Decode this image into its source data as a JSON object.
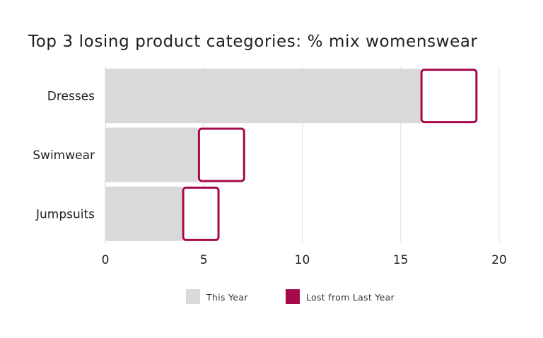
{
  "chart_data": {
    "type": "bar",
    "orientation": "horizontal",
    "stacked": true,
    "title": "Top 3 losing product categories: % mix womenswear",
    "categories": [
      "Dresses",
      "Swimwear",
      "Jumpsuits"
    ],
    "series": [
      {
        "name": "This Year",
        "values": [
          16,
          4.7,
          3.9
        ],
        "color": "#d9d9d9"
      },
      {
        "name": "Lost from Last Year",
        "values": [
          2.9,
          2.4,
          1.9
        ],
        "color": "#a6094a"
      }
    ],
    "xlim": [
      0,
      20
    ],
    "xticks": [
      "0",
      "5",
      "10",
      "15",
      "20"
    ],
    "xlabel": "",
    "ylabel": "",
    "grid": true,
    "legend_position": "bottom"
  }
}
